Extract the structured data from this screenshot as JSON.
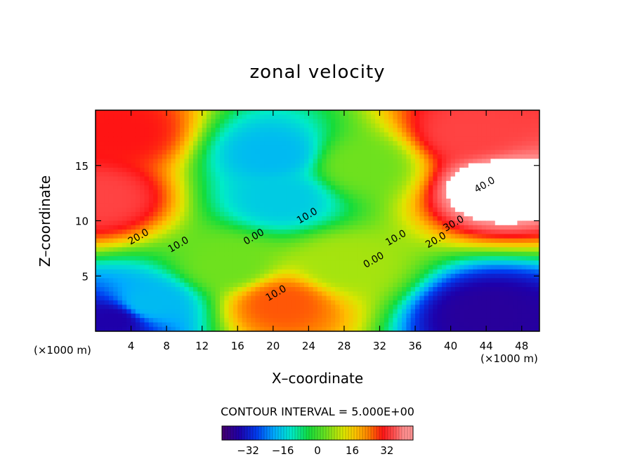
{
  "chart_data": {
    "type": "heatmap",
    "title": "zonal velocity",
    "xlabel": "X–coordinate",
    "ylabel": "Z–coordinate",
    "x_unit_left": "(×1000 m)",
    "x_unit_right": "(×1000 m)",
    "xlim": [
      0,
      50
    ],
    "ylim": [
      0,
      20
    ],
    "xticks": [
      4,
      8,
      12,
      16,
      20,
      24,
      28,
      32,
      36,
      40,
      44,
      48
    ],
    "yticks": [
      5,
      10,
      15
    ],
    "contour_interval_label": "CONTOUR INTERVAL = 5.000E+00",
    "contour_interval": 5,
    "colorbar": {
      "ticks": [
        -32,
        -16,
        0,
        16,
        32
      ],
      "tick_labels": [
        "−32",
        "−16",
        "0",
        "16",
        "32"
      ],
      "range": [
        -44,
        44
      ]
    },
    "contour_labels": [
      {
        "text": "40.0",
        "x": 44,
        "z": 13
      },
      {
        "text": "30.0",
        "x": 40.5,
        "z": 9.5
      },
      {
        "text": "20.0",
        "x": 38.5,
        "z": 8.0
      },
      {
        "text": "20.0",
        "x": 5,
        "z": 8.3
      },
      {
        "text": "10.0",
        "x": 9.5,
        "z": 7.6
      },
      {
        "text": "10.0",
        "x": 34,
        "z": 8.2
      },
      {
        "text": "10.0",
        "x": 24,
        "z": 10.2
      },
      {
        "text": "0.00",
        "x": 18,
        "z": 8.3
      },
      {
        "text": "0.00",
        "x": 31.5,
        "z": 6.2
      },
      {
        "text": "10.0",
        "x": 20.5,
        "z": 3.2
      }
    ],
    "field_sample": [
      {
        "x": 0.5,
        "z": 12,
        "u": 34
      },
      {
        "x": 3,
        "z": 18,
        "u": 30
      },
      {
        "x": 2,
        "z": 1,
        "u": -36
      },
      {
        "x": 6,
        "z": 2.5,
        "u": -18
      },
      {
        "x": 20,
        "z": 16,
        "u": -18
      },
      {
        "x": 21,
        "z": 12,
        "u": -16
      },
      {
        "x": 21,
        "z": 2.5,
        "u": 26
      },
      {
        "x": 28,
        "z": 6,
        "u": 8
      },
      {
        "x": 45,
        "z": 13,
        "u": 44
      },
      {
        "x": 42,
        "z": 18,
        "u": 34
      },
      {
        "x": 44,
        "z": 1.5,
        "u": -38
      },
      {
        "x": 15,
        "z": 6,
        "u": 4
      },
      {
        "x": 30,
        "z": 15,
        "u": 4
      }
    ]
  }
}
